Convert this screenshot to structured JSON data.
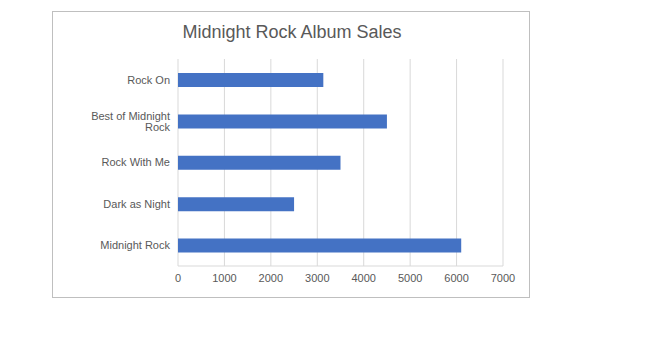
{
  "chart_data": {
    "type": "bar",
    "title": "Midnight Rock Album Sales",
    "orientation": "horizontal",
    "categories": [
      "Rock On",
      "Best of Midnight Rock",
      "Rock With Me",
      "Dark as Night",
      "Midnight Rock"
    ],
    "values": [
      3130,
      4500,
      3500,
      2500,
      6100
    ],
    "color": "#4472c4",
    "xlim": [
      0,
      7000
    ],
    "xticks": [
      0,
      1000,
      2000,
      3000,
      4000,
      5000,
      6000,
      7000
    ],
    "grid": true
  }
}
